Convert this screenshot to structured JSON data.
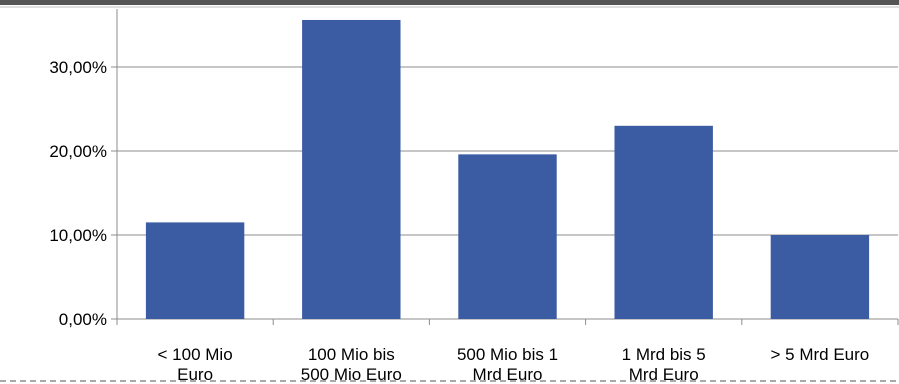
{
  "chart_data": {
    "type": "bar",
    "categories": [
      [
        "< 100 Mio",
        "Euro"
      ],
      [
        "100 Mio bis",
        "500 Mio Euro"
      ],
      [
        "500 Mio bis 1",
        "Mrd Euro"
      ],
      [
        "1 Mrd bis 5",
        "Mrd Euro"
      ],
      [
        "> 5 Mrd Euro"
      ]
    ],
    "values": [
      11.5,
      35.6,
      19.6,
      23.0,
      10.0
    ],
    "yticks": [
      0,
      10,
      20,
      30
    ],
    "ytick_labels": [
      "0,00%",
      "10,00%",
      "20,00%",
      "30,00%"
    ],
    "ylim": [
      0,
      36.5
    ],
    "grid": true,
    "title": "",
    "xlabel": "",
    "ylabel": "",
    "colors": {
      "bar": "#3B5BA3",
      "grid": "#8C8C8C",
      "axis": "#8C8C8C",
      "frame_top": "#555555",
      "dashed_border": "#555555"
    }
  }
}
